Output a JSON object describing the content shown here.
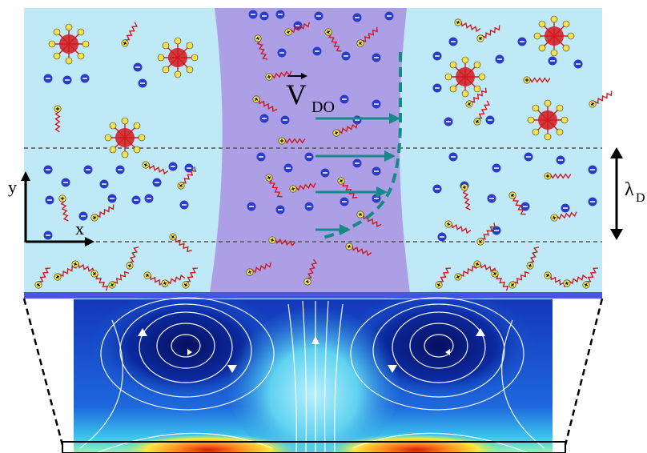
{
  "labels": {
    "velocity_symbol": "V",
    "velocity_subscript": "DO",
    "y_axis": "y",
    "x_axis": "x",
    "debye_symbol": "λ",
    "debye_subscript": "D"
  },
  "colors": {
    "fluid": "#bfe9f6",
    "channel": "#ac9fe5",
    "wall": "#4a55e6",
    "ion_fill": "#2a3cc8",
    "counterion_fill": "#f3e24a",
    "chain": "#d0191d",
    "velocity_arrow": "#168a86",
    "boundary_dash": "#444444",
    "field_dark": "#0a1a78",
    "field_light": "#7ee3ff"
  },
  "icons": {
    "negative_ion": "minus-ion-icon",
    "positive_counterion": "plus-counterion-icon",
    "surfactant_chain": "zigzag-chain-icon",
    "micelle": "micelle-icon"
  }
}
